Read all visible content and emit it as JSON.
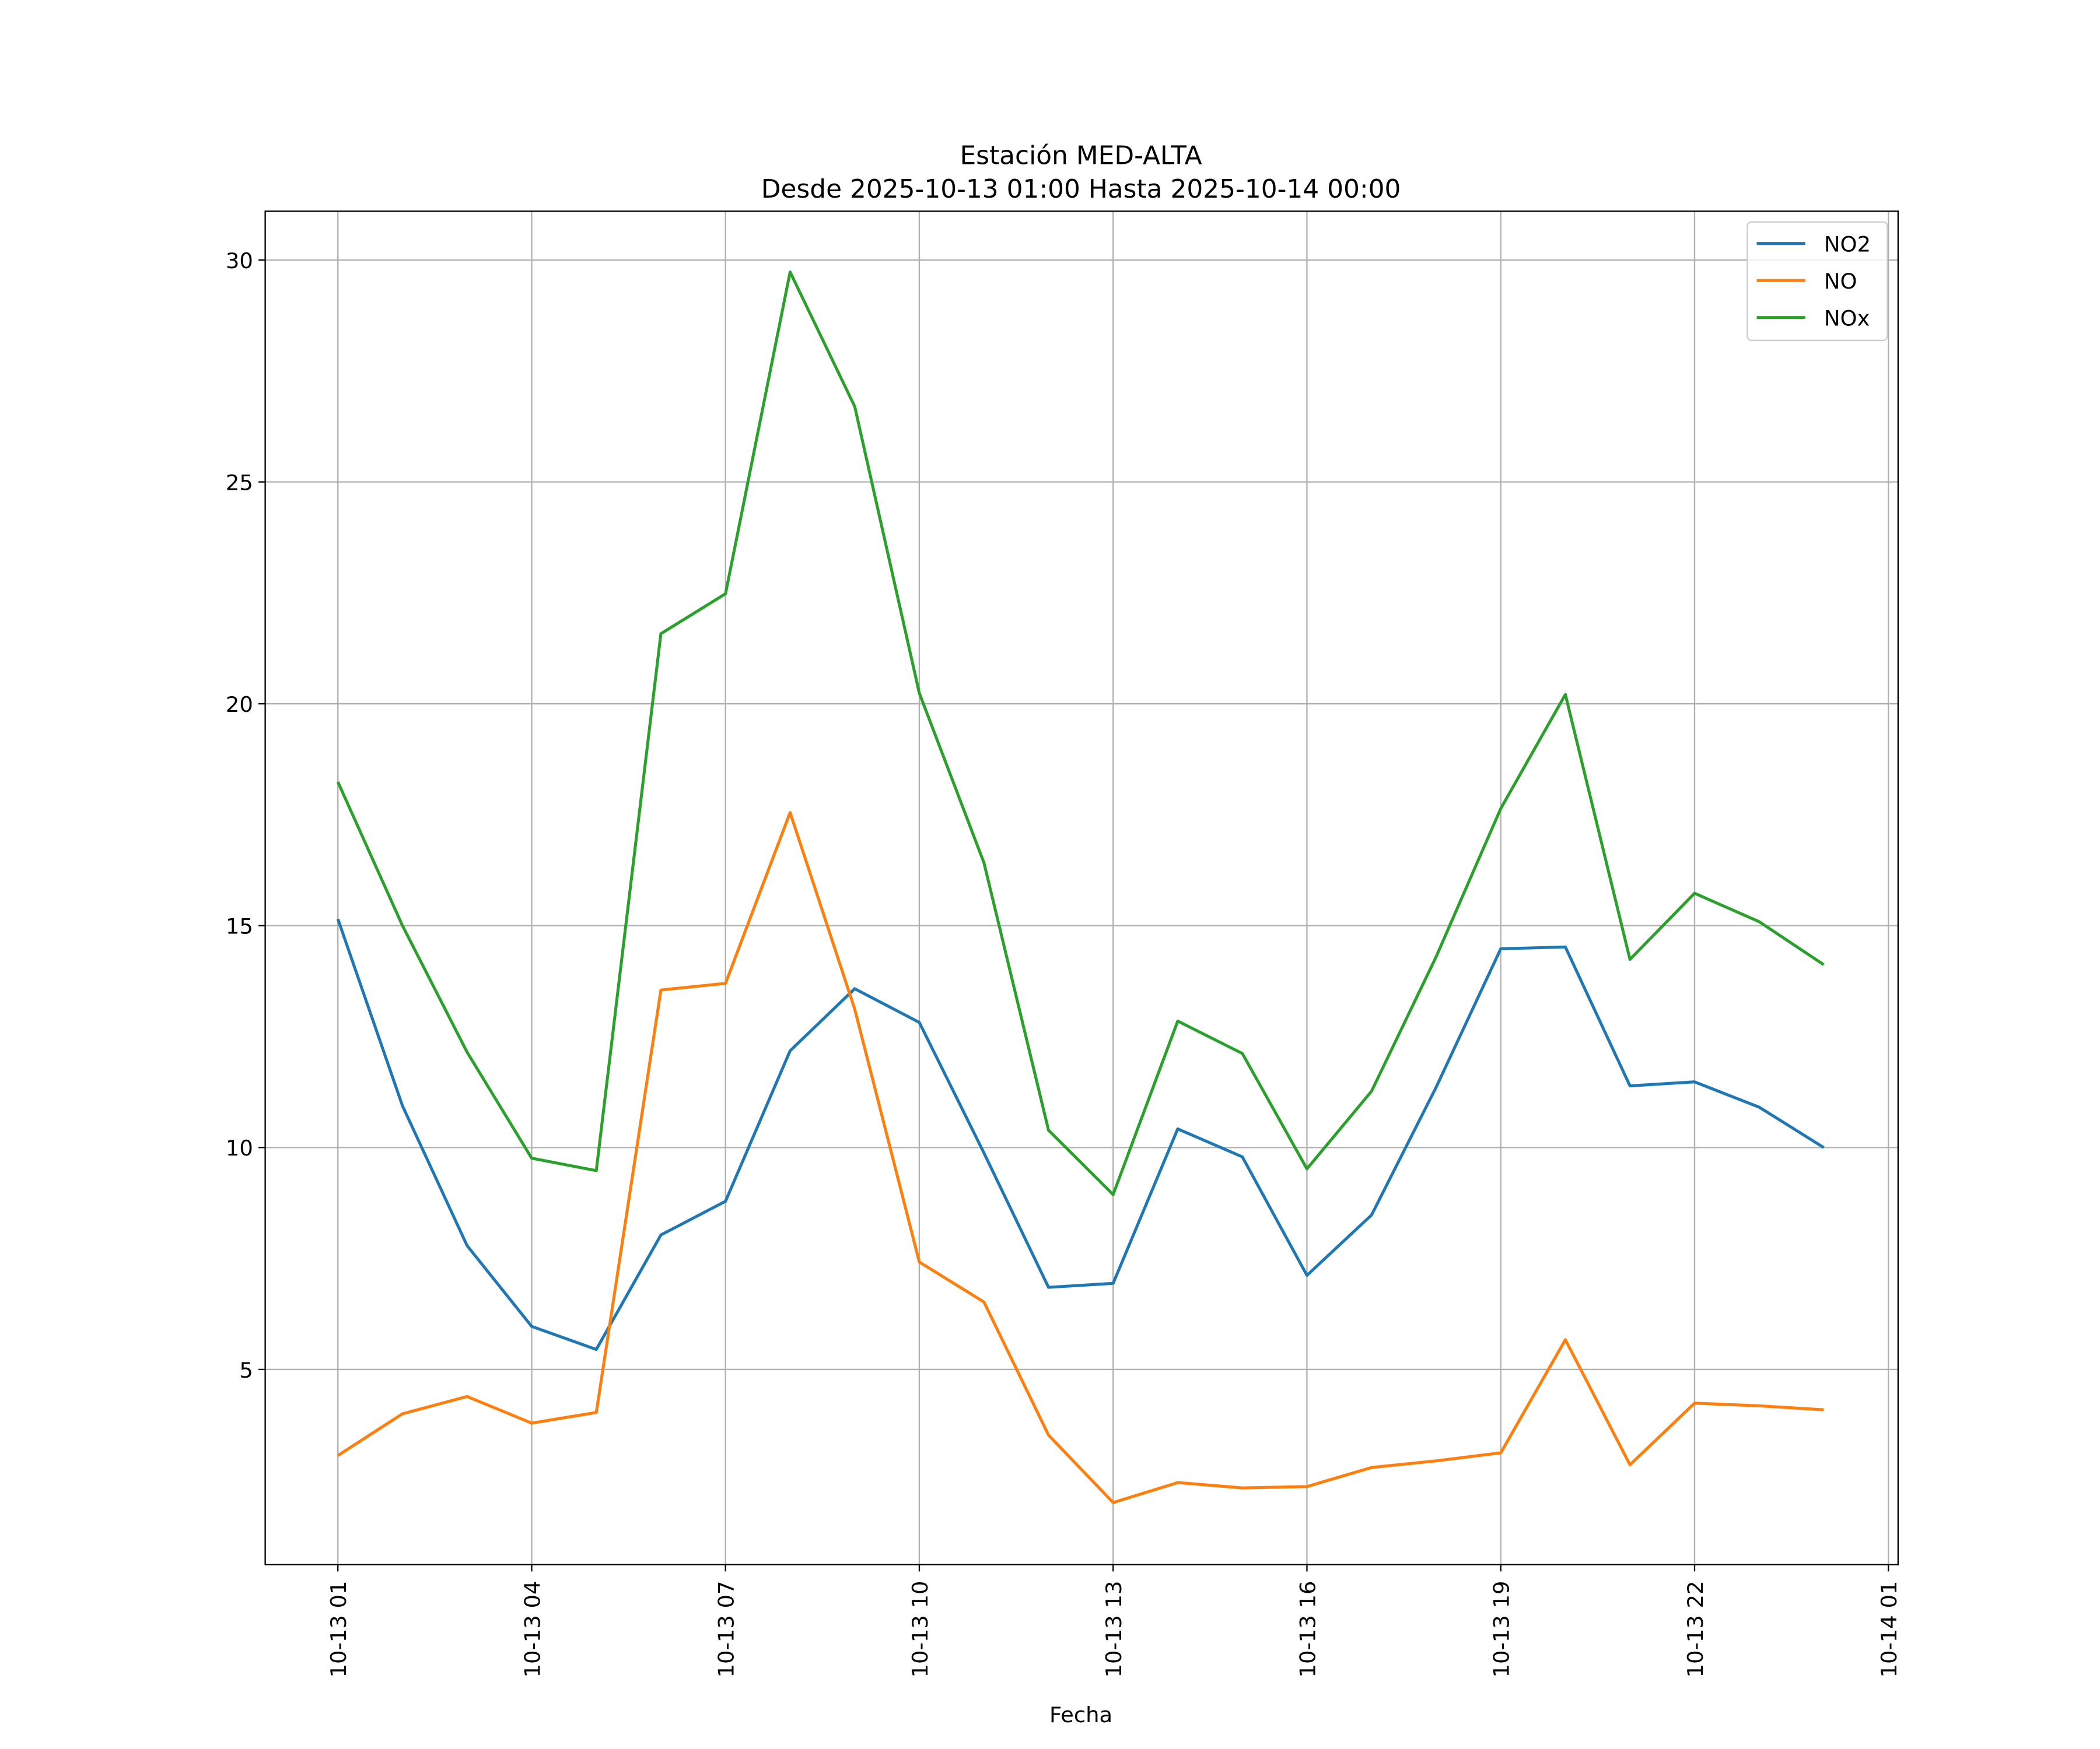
{
  "chart_data": {
    "type": "line",
    "title": "Estación MED-ALTA",
    "subtitle": "Desde 2025-10-13 01:00 Hasta 2025-10-14 00:00",
    "xlabel": "Fecha",
    "ylabel": "",
    "x_hours": [
      1,
      2,
      3,
      4,
      5,
      6,
      7,
      8,
      9,
      10,
      11,
      12,
      13,
      14,
      15,
      16,
      17,
      18,
      19,
      20,
      21,
      22,
      23,
      24
    ],
    "xlim_hours": [
      -0.125,
      25.15
    ],
    "xticks": [
      {
        "hour": 1,
        "label": "10-13 01"
      },
      {
        "hour": 4,
        "label": "10-13 04"
      },
      {
        "hour": 7,
        "label": "10-13 07"
      },
      {
        "hour": 10,
        "label": "10-13 10"
      },
      {
        "hour": 13,
        "label": "10-13 13"
      },
      {
        "hour": 16,
        "label": "10-13 16"
      },
      {
        "hour": 19,
        "label": "10-13 19"
      },
      {
        "hour": 22,
        "label": "10-13 22"
      },
      {
        "hour": 25,
        "label": "10-14 01"
      }
    ],
    "ylim": [
      0.6,
      31.1
    ],
    "yticks": [
      5,
      10,
      15,
      20,
      25,
      30
    ],
    "grid": true,
    "legend_position": "top-right",
    "series": [
      {
        "name": "NO2",
        "color": "#1f77b4",
        "values": [
          15.15,
          10.94,
          7.79,
          5.97,
          5.45,
          8.03,
          8.79,
          12.18,
          13.58,
          12.82,
          9.88,
          6.85,
          6.94,
          10.42,
          9.79,
          7.12,
          8.48,
          11.36,
          14.48,
          14.52,
          11.39,
          11.48,
          10.91,
          10.0
        ]
      },
      {
        "name": "NO",
        "color": "#ff7f0e",
        "values": [
          3.06,
          4.0,
          4.39,
          3.79,
          4.03,
          13.55,
          13.7,
          17.55,
          13.12,
          7.42,
          6.52,
          3.52,
          2.0,
          2.45,
          2.33,
          2.36,
          2.79,
          2.94,
          3.12,
          5.67,
          2.85,
          4.24,
          4.18,
          4.09
        ]
      },
      {
        "name": "NOx",
        "color": "#2ca02c",
        "values": [
          18.24,
          15.0,
          12.15,
          9.76,
          9.48,
          21.58,
          22.48,
          29.73,
          26.7,
          20.24,
          16.42,
          10.39,
          8.94,
          12.85,
          12.12,
          9.52,
          11.27,
          14.3,
          17.64,
          20.21,
          14.24,
          15.73,
          15.09,
          14.12
        ]
      }
    ]
  }
}
